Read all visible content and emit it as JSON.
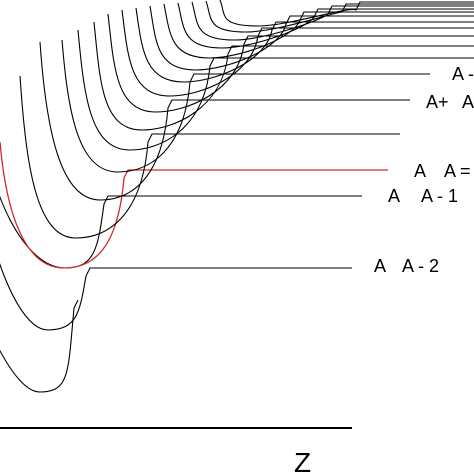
{
  "diagram": {
    "axis_label": "Z",
    "labels": [
      {
        "id": "a-minus-2",
        "left": "A",
        "right": "A - 2"
      },
      {
        "id": "a-minus-1",
        "left": "A",
        "right": "A - 1"
      },
      {
        "id": "a-equals",
        "left": "A",
        "right": "A ="
      },
      {
        "id": "a-plus",
        "left": "A+",
        "right": "A"
      },
      {
        "id": "a-top",
        "left": "A -",
        "right": ""
      }
    ],
    "colors": {
      "line": "#000000",
      "highlight": "#d62728"
    }
  }
}
